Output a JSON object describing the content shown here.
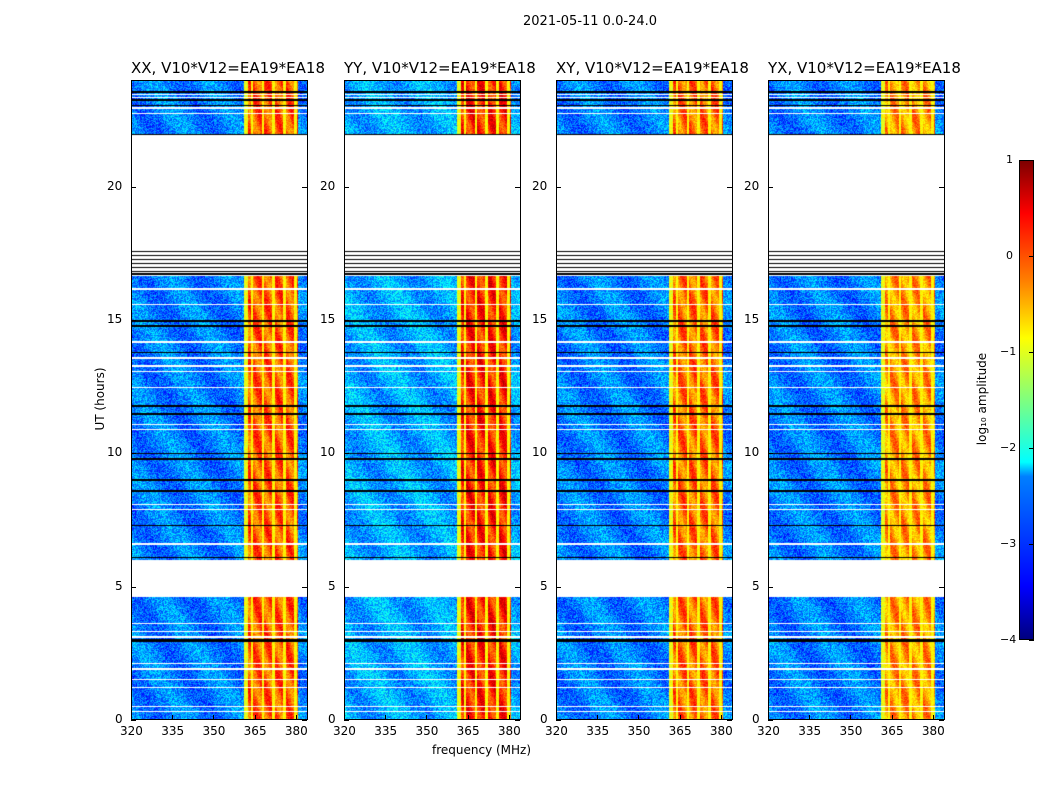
{
  "chart_data": {
    "type": "heatmap",
    "title": "2021-05-11 0.0-24.0",
    "xlabel": "frequency (MHz)",
    "ylabel": "UT (hours)",
    "xlim": [
      320,
      384.4
    ],
    "ylim": [
      0,
      24
    ],
    "xticks": [
      "320",
      "335",
      "350",
      "365",
      "380"
    ],
    "xtick_values": [
      320,
      335,
      350,
      365,
      380
    ],
    "yticks": [
      "0",
      "5",
      "10",
      "15",
      "20"
    ],
    "ytick_values": [
      0,
      5,
      10,
      15,
      20
    ],
    "panels": [
      {
        "title": "XX, V10*V12=EA19*EA18",
        "rfi_level": 0.0
      },
      {
        "title": "YY, V10*V12=EA19*EA18",
        "rfi_level": 0.25
      },
      {
        "title": "XY, V10*V12=EA19*EA18",
        "rfi_level": -0.1
      },
      {
        "title": "YX, V10*V12=EA19*EA18",
        "rfi_level": -0.3
      }
    ],
    "flagged_hours": [
      [
        4.6,
        6.0
      ],
      [
        16.7,
        22.0
      ]
    ],
    "black_stripe_hours": [
      16.85,
      17.0,
      17.15,
      17.3,
      17.45,
      17.6,
      16.75,
      22.0,
      10.0,
      9.8,
      9.0,
      8.6,
      7.3,
      6.1,
      3.0,
      2.95,
      11.5,
      11.8,
      13.8,
      14.8,
      15.0,
      23.6,
      23.3,
      23.1
    ],
    "white_line_hours": [
      0.3,
      0.5,
      1.2,
      1.5,
      1.9,
      2.1,
      3.1,
      3.3,
      3.6,
      6.6,
      7.9,
      8.1,
      10.9,
      11.1,
      12.5,
      13.1,
      13.3,
      13.6,
      14.2,
      15.6,
      16.2,
      23.0,
      23.4,
      23.5,
      22.8
    ],
    "rfi_band_mhz": [
      361,
      381
    ],
    "rfi_subband_edges_mhz": [
      364,
      368,
      372,
      376,
      380
    ],
    "colorbar": {
      "label": "log₁₀ amplitude",
      "range": [
        -4,
        1
      ],
      "ticks": [
        "1",
        "0",
        "−1",
        "−2",
        "−3",
        "−4"
      ],
      "tick_values": [
        1,
        0,
        -1,
        -2,
        -3,
        -4
      ],
      "colormap": "jet"
    }
  }
}
